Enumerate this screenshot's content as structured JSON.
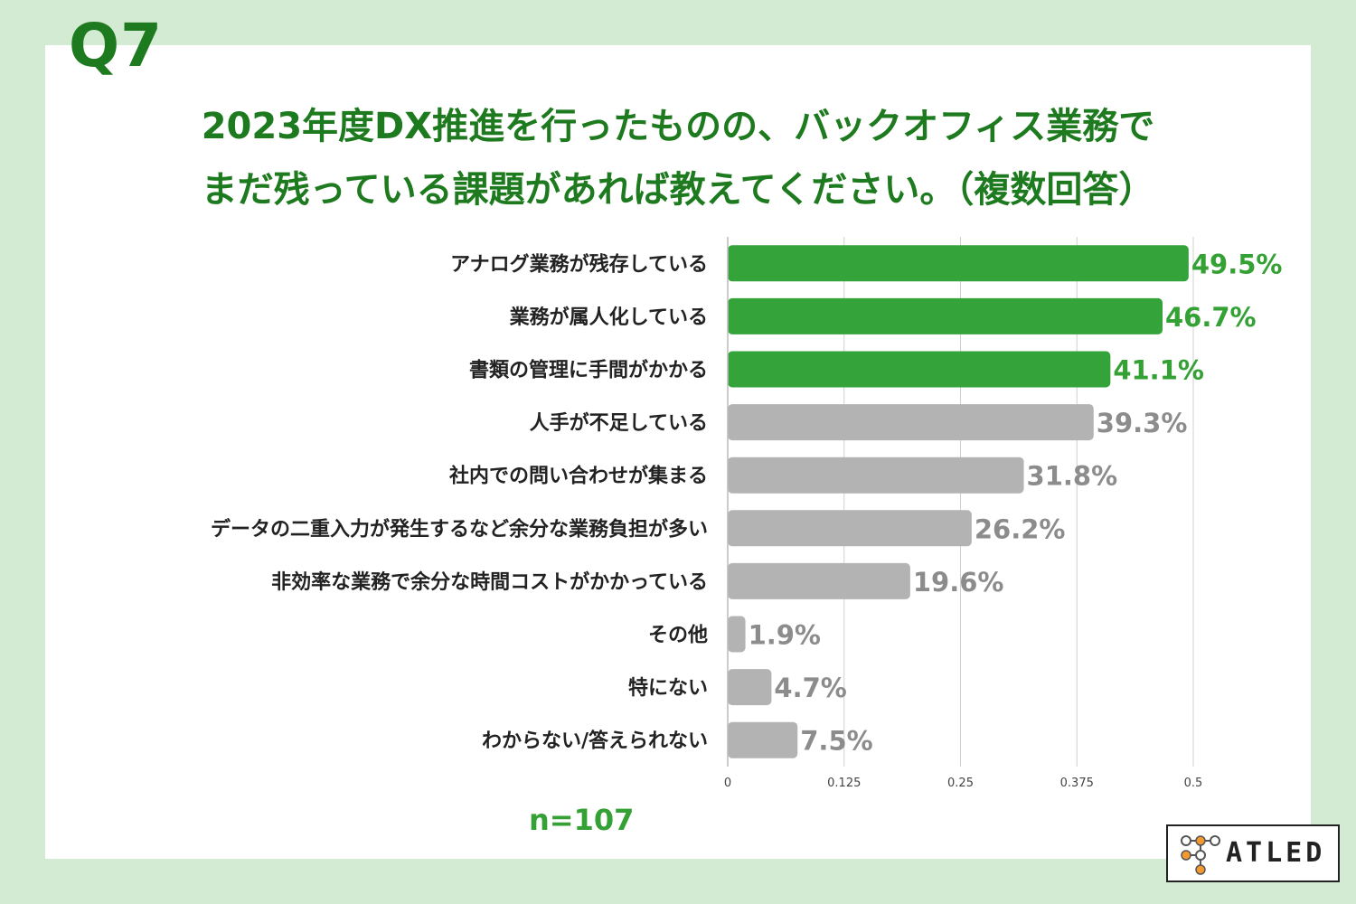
{
  "question": {
    "number": "Q7",
    "line1": "2023年度DX推進を行ったものの、バックオフィス業務で",
    "line2": "まだ残っている課題があれば教えてください。（複数回答）"
  },
  "chart_data": {
    "type": "bar",
    "orientation": "horizontal",
    "categories": [
      "アナログ業務が残存している",
      "業務が属人化している",
      "書類の管理に手間がかかる",
      "人手が不足している",
      "社内での問い合わせが集まる",
      "データの二重入力が発生するなど余分な業務負担が多い",
      "非効率な業務で余分な時間コストがかかっている",
      "その他",
      "特にない",
      "わからない/答えられない"
    ],
    "values": [
      0.495,
      0.467,
      0.411,
      0.393,
      0.318,
      0.262,
      0.196,
      0.019,
      0.047,
      0.075
    ],
    "labels": [
      "49.5%",
      "46.7%",
      "41.1%",
      "39.3%",
      "31.8%",
      "26.2%",
      "19.6%",
      "1.9%",
      "4.7%",
      "7.5%"
    ],
    "highlight": [
      true,
      true,
      true,
      false,
      false,
      false,
      false,
      false,
      false,
      false
    ],
    "xlim": [
      0,
      0.5
    ],
    "ticks": [
      "0",
      "0.125",
      "0.25",
      "0.375",
      "0.5"
    ],
    "tick_values": [
      0,
      0.125,
      0.25,
      0.375,
      0.5
    ],
    "grid": true,
    "colors": {
      "highlight": "#33a33a",
      "normal": "#b3b3b3",
      "highlight_label": "#33a133",
      "normal_label": "#8c8c8c"
    }
  },
  "sample": "n=107",
  "logo": {
    "text": "ATLED"
  }
}
